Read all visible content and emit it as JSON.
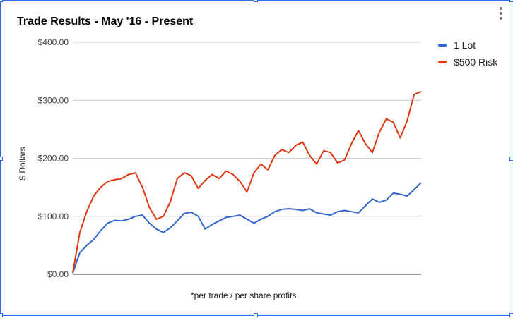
{
  "chart_data": {
    "type": "line",
    "title": "Trade Results - May '16 - Present",
    "xlabel": "*per trade / per share profits",
    "ylabel": "$ Dollars",
    "ylim": [
      0,
      400
    ],
    "yticks": [
      {
        "value": 0,
        "label": "$0.00"
      },
      {
        "value": 100,
        "label": "$100.00"
      },
      {
        "value": 200,
        "label": "$200.00"
      },
      {
        "value": 300,
        "label": "$300.00"
      },
      {
        "value": 400,
        "label": "$400.00"
      }
    ],
    "grid": true,
    "legend_position": "right",
    "x": [
      0,
      2,
      4,
      6,
      8,
      10,
      12,
      14,
      16,
      18,
      20,
      22,
      24,
      26,
      28,
      30,
      32,
      34,
      36,
      38,
      40,
      42,
      44,
      46,
      48,
      50,
      52,
      54,
      56,
      58,
      60,
      62,
      64,
      66,
      68,
      70,
      72,
      74,
      76,
      78,
      80,
      82,
      84,
      86,
      88,
      90,
      92,
      94,
      96,
      98,
      100
    ],
    "series": [
      {
        "name": "1 Lot",
        "color": "#3366cc",
        "values": [
          2,
          37,
          50,
          60,
          75,
          88,
          93,
          92,
          95,
          100,
          102,
          88,
          78,
          72,
          80,
          92,
          105,
          107,
          100,
          78,
          86,
          92,
          98,
          100,
          102,
          95,
          88,
          95,
          100,
          108,
          112,
          113,
          112,
          110,
          113,
          106,
          104,
          102,
          108,
          110,
          108,
          106,
          118,
          130,
          124,
          128,
          140,
          138,
          135,
          146,
          158
        ]
      },
      {
        "name": "$500 Risk",
        "color": "#dc3912",
        "values": [
          2,
          72,
          108,
          135,
          150,
          160,
          163,
          165,
          172,
          175,
          150,
          115,
          95,
          100,
          125,
          165,
          175,
          170,
          148,
          162,
          172,
          165,
          178,
          172,
          160,
          142,
          175,
          190,
          180,
          205,
          215,
          210,
          222,
          228,
          205,
          190,
          213,
          210,
          192,
          197,
          225,
          248,
          225,
          210,
          245,
          268,
          262,
          235,
          265,
          310,
          315
        ]
      }
    ],
    "footnote": "*per trade / per share profits"
  }
}
